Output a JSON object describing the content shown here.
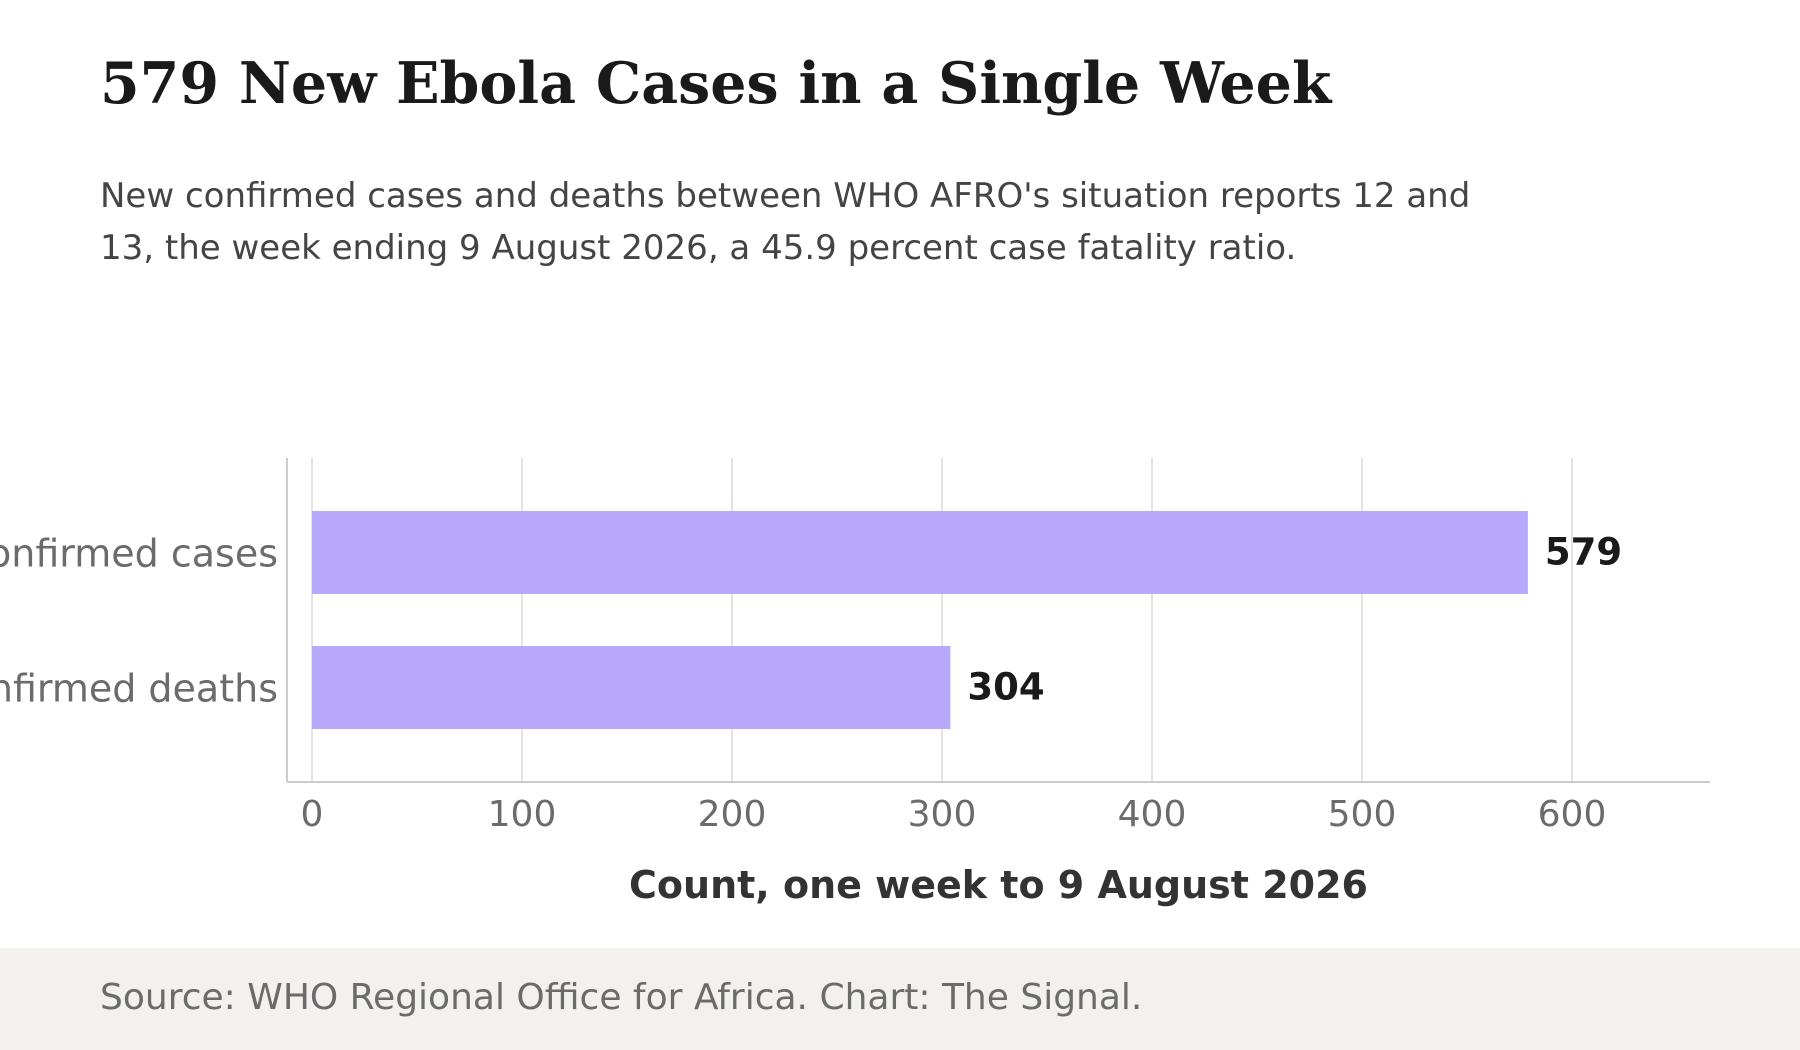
{
  "title": "579 New Ebola Cases in a Single Week",
  "subtitle": "New confirmed cases and deaths between WHO AFRO's situation reports 12 and 13, the week ending 9 August 2026, a 45.9 percent case fatality ratio.",
  "source": "Source: WHO Regional Office for Africa. Chart: The Signal.",
  "colors": {
    "bar": "#b8a9fc",
    "grid": "#e3e3e3",
    "axis": "#cccccc",
    "tick_text": "#6b6b6b",
    "value_text": "#1a1a1a",
    "xlabel_text": "#333333",
    "footer_bg": "#f2f1ef"
  },
  "chart_data": {
    "type": "bar",
    "orientation": "horizontal",
    "categories": [
      "New confirmed cases",
      "New confirmed deaths"
    ],
    "values": [
      579,
      304
    ],
    "value_labels": [
      "579",
      "304"
    ],
    "xlabel": "Count, one week to 9 August 2026",
    "ylabel": "",
    "xlim": [
      0,
      660
    ],
    "xticks": [
      0,
      100,
      200,
      300,
      400,
      500,
      600
    ],
    "grid": true,
    "legend": "none"
  }
}
